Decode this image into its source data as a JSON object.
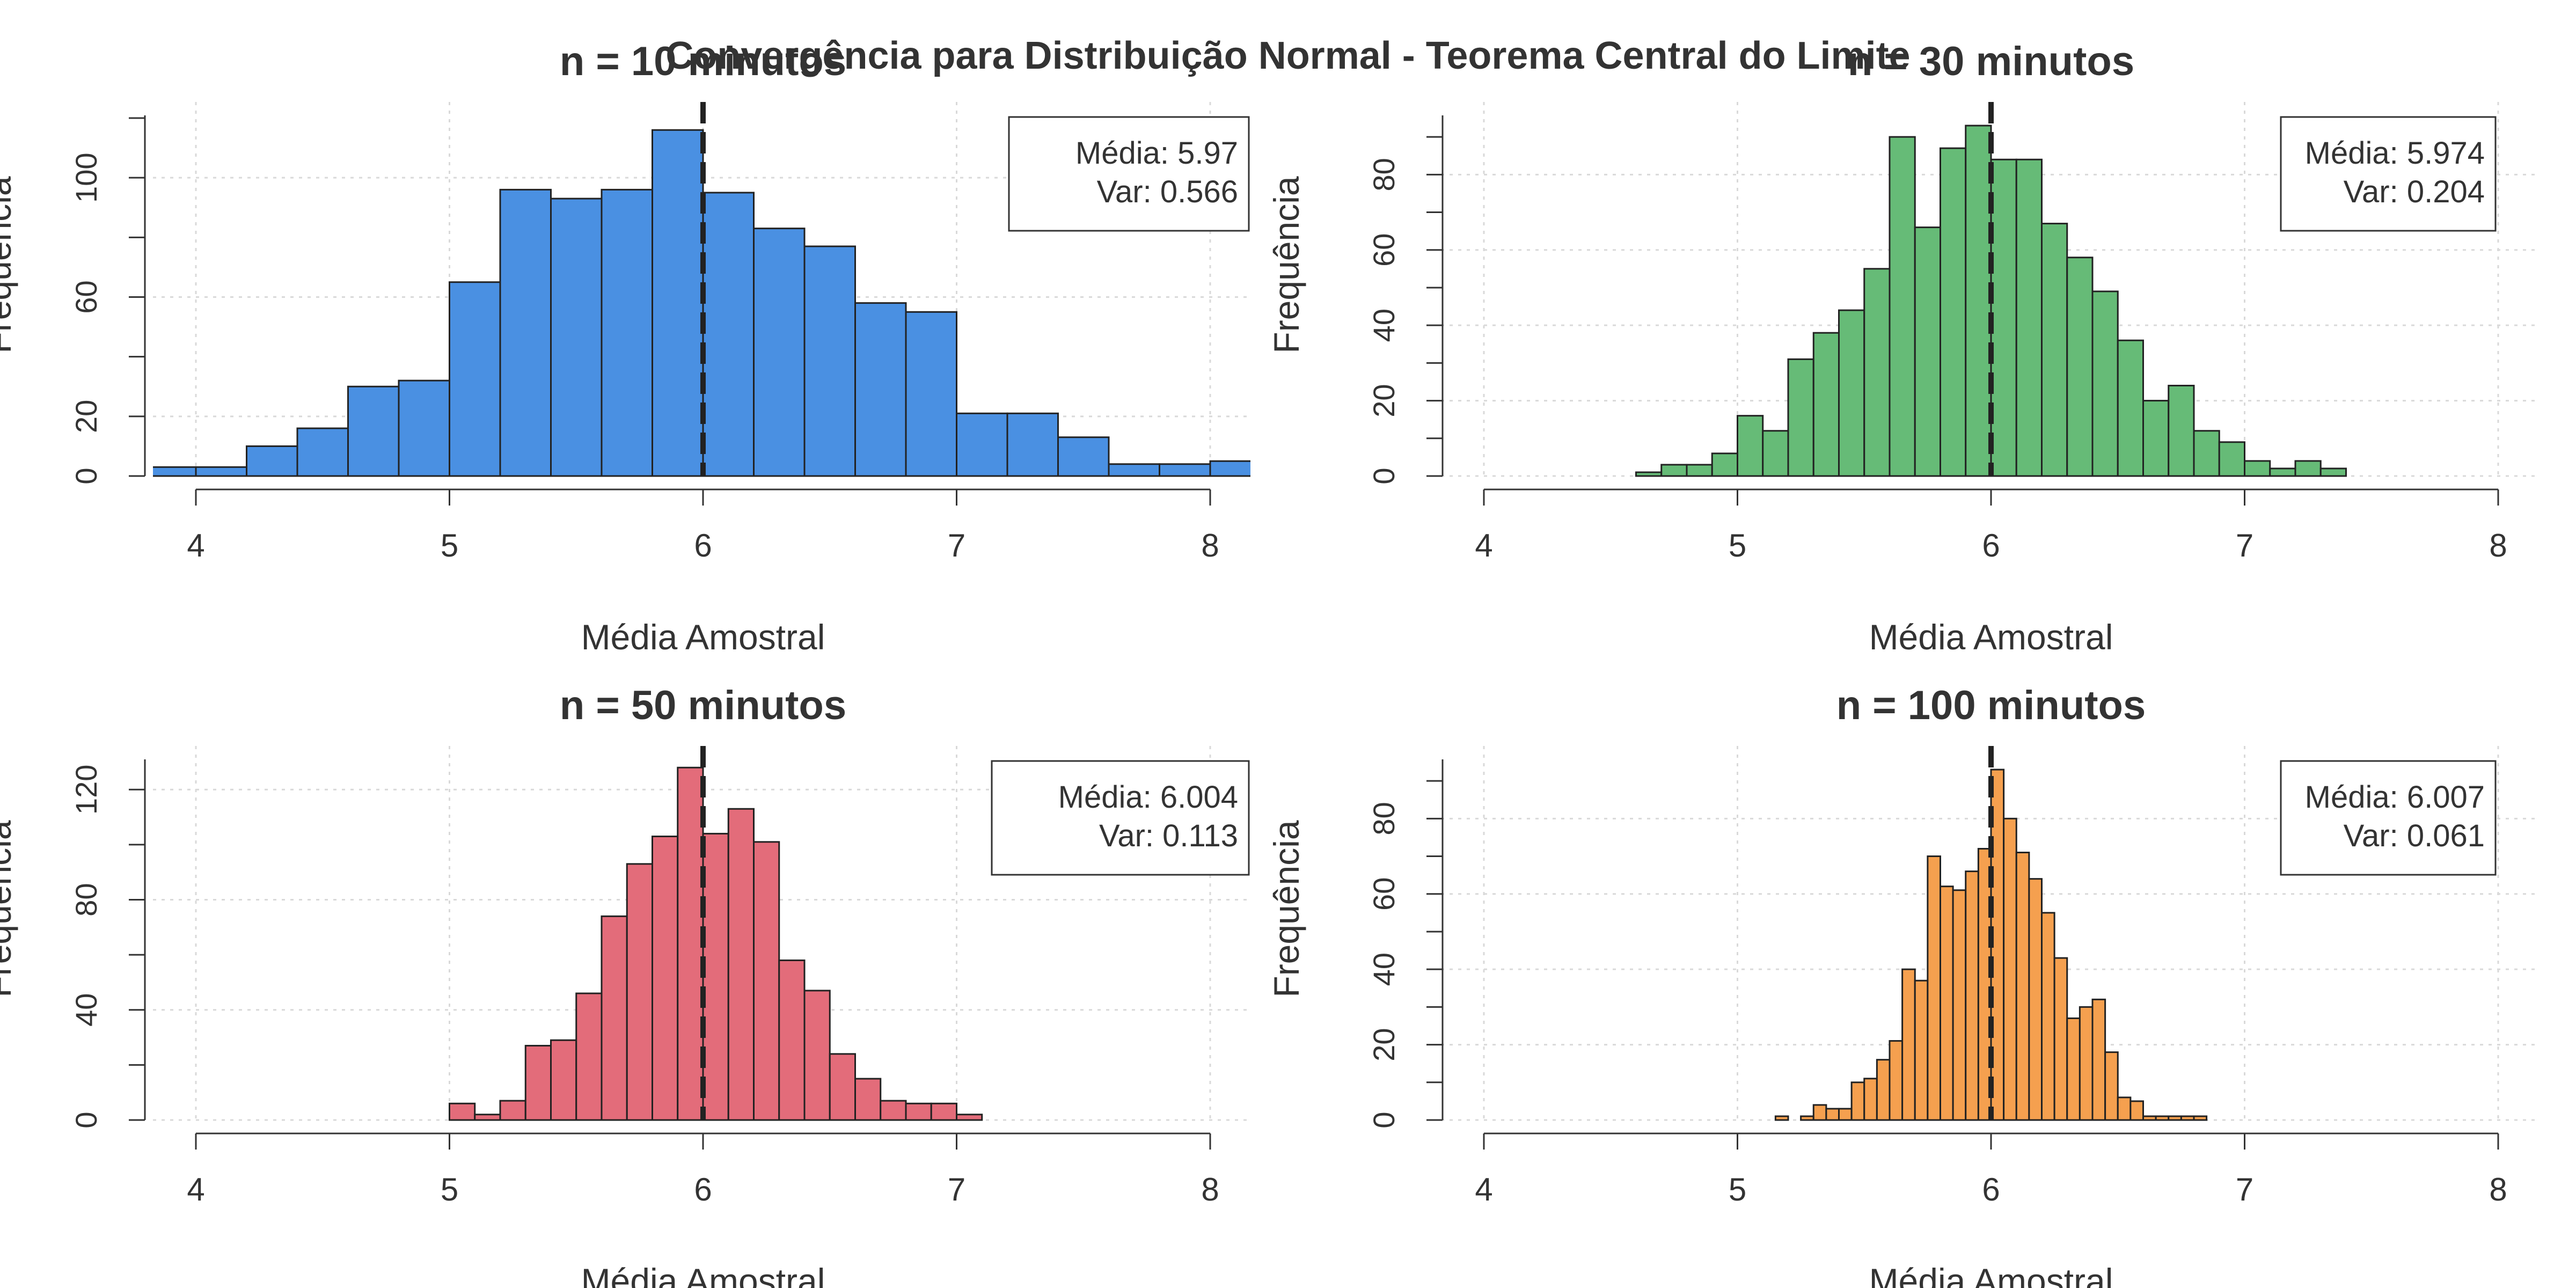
{
  "figure": {
    "suptitle": "Convergência para Distribuição Normal - Teorema Central do Limite"
  },
  "chart_data": [
    {
      "type": "bar",
      "title": "n = 10 minutos",
      "xlabel": "Média Amostral",
      "ylabel": "Frequência",
      "xlim": [
        4,
        8
      ],
      "ylim": [
        0,
        120
      ],
      "x_ticks": [
        4,
        5,
        6,
        7,
        8
      ],
      "y_ticks": [
        0,
        20,
        60,
        100
      ],
      "grid": true,
      "bar_color": "#4a90e2",
      "vline": 6,
      "bin_edges": [
        3.8,
        4.0,
        4.2,
        4.4,
        4.6,
        4.8,
        5.0,
        5.2,
        5.4,
        5.6,
        5.8,
        6.0,
        6.2,
        6.4,
        6.6,
        6.8,
        7.0,
        7.2,
        7.4,
        7.6,
        7.8,
        8.0,
        8.2
      ],
      "values": [
        3,
        3,
        10,
        16,
        30,
        32,
        65,
        96,
        93,
        96,
        116,
        95,
        83,
        77,
        58,
        55,
        21,
        21,
        13,
        4,
        4,
        5
      ],
      "legend": {
        "position": "top-right",
        "lines": [
          "Média: 5.97",
          "Var: 0.566"
        ]
      }
    },
    {
      "type": "bar",
      "title": "n = 30 minutos",
      "xlabel": "Média Amostral",
      "ylabel": "Frequência",
      "xlim": [
        4,
        8
      ],
      "ylim": [
        0,
        95
      ],
      "x_ticks": [
        4,
        5,
        6,
        7,
        8
      ],
      "y_ticks": [
        0,
        20,
        40,
        60,
        80
      ],
      "grid": true,
      "bar_color": "#66bb77",
      "vline": 6,
      "bin_edges": [
        4.6,
        4.7,
        4.8,
        4.9,
        5.0,
        5.1,
        5.2,
        5.3,
        5.4,
        5.5,
        5.6,
        5.7,
        5.8,
        5.9,
        6.0,
        6.1,
        6.2,
        6.3,
        6.4,
        6.5,
        6.6,
        6.7,
        6.8,
        6.9,
        7.0,
        7.1,
        7.2,
        7.3,
        7.4
      ],
      "values": [
        1,
        3,
        3,
        6,
        16,
        12,
        31,
        38,
        44,
        55,
        90,
        66,
        87,
        93,
        84,
        84,
        67,
        58,
        49,
        36,
        20,
        24,
        12,
        9,
        4,
        2,
        4,
        2
      ],
      "legend": {
        "position": "top-right",
        "lines": [
          "Média: 5.974",
          "Var: 0.204"
        ]
      }
    },
    {
      "type": "bar",
      "title": "n = 50 minutos",
      "xlabel": "Média Amostral",
      "ylabel": "Frequência",
      "xlim": [
        4,
        8
      ],
      "ylim": [
        0,
        130
      ],
      "x_ticks": [
        4,
        5,
        6,
        7,
        8
      ],
      "y_ticks": [
        0,
        40,
        80,
        120
      ],
      "grid": true,
      "bar_color": "#e36c7a",
      "vline": 6,
      "bin_edges": [
        5.0,
        5.1,
        5.2,
        5.3,
        5.4,
        5.5,
        5.6,
        5.7,
        5.8,
        5.9,
        6.0,
        6.1,
        6.2,
        6.3,
        6.4,
        6.5,
        6.6,
        6.7,
        6.8,
        6.9,
        7.0,
        7.1
      ],
      "values": [
        6,
        2,
        7,
        27,
        29,
        46,
        74,
        93,
        103,
        128,
        104,
        113,
        101,
        58,
        47,
        24,
        15,
        7,
        6,
        6,
        2
      ],
      "legend": {
        "position": "top-right",
        "lines": [
          "Média: 6.004",
          "Var: 0.113"
        ]
      }
    },
    {
      "type": "bar",
      "title": "n = 100 minutos",
      "xlabel": "Média Amostral",
      "ylabel": "Frequência",
      "xlim": [
        4,
        8
      ],
      "ylim": [
        0,
        95
      ],
      "x_ticks": [
        4,
        5,
        6,
        7,
        8
      ],
      "y_ticks": [
        0,
        20,
        40,
        60,
        80
      ],
      "grid": true,
      "bar_color": "#f5a04f",
      "vline": 6,
      "bin_edges": [
        5.15,
        5.2,
        5.25,
        5.3,
        5.35,
        5.4,
        5.45,
        5.5,
        5.55,
        5.6,
        5.65,
        5.7,
        5.75,
        5.8,
        5.85,
        5.9,
        5.95,
        6.0,
        6.05,
        6.1,
        6.15,
        6.2,
        6.25,
        6.3,
        6.35,
        6.4,
        6.45,
        6.5,
        6.55,
        6.6,
        6.65,
        6.7,
        6.75,
        6.8,
        6.85
      ],
      "values": [
        1,
        0,
        1,
        4,
        3,
        3,
        10,
        11,
        16,
        21,
        40,
        37,
        70,
        62,
        61,
        66,
        72,
        93,
        80,
        71,
        64,
        55,
        43,
        27,
        30,
        32,
        18,
        6,
        5,
        1,
        1,
        1,
        1,
        1
      ],
      "legend": {
        "position": "top-right",
        "lines": [
          "Média: 6.007",
          "Var: 0.061"
        ]
      }
    }
  ]
}
